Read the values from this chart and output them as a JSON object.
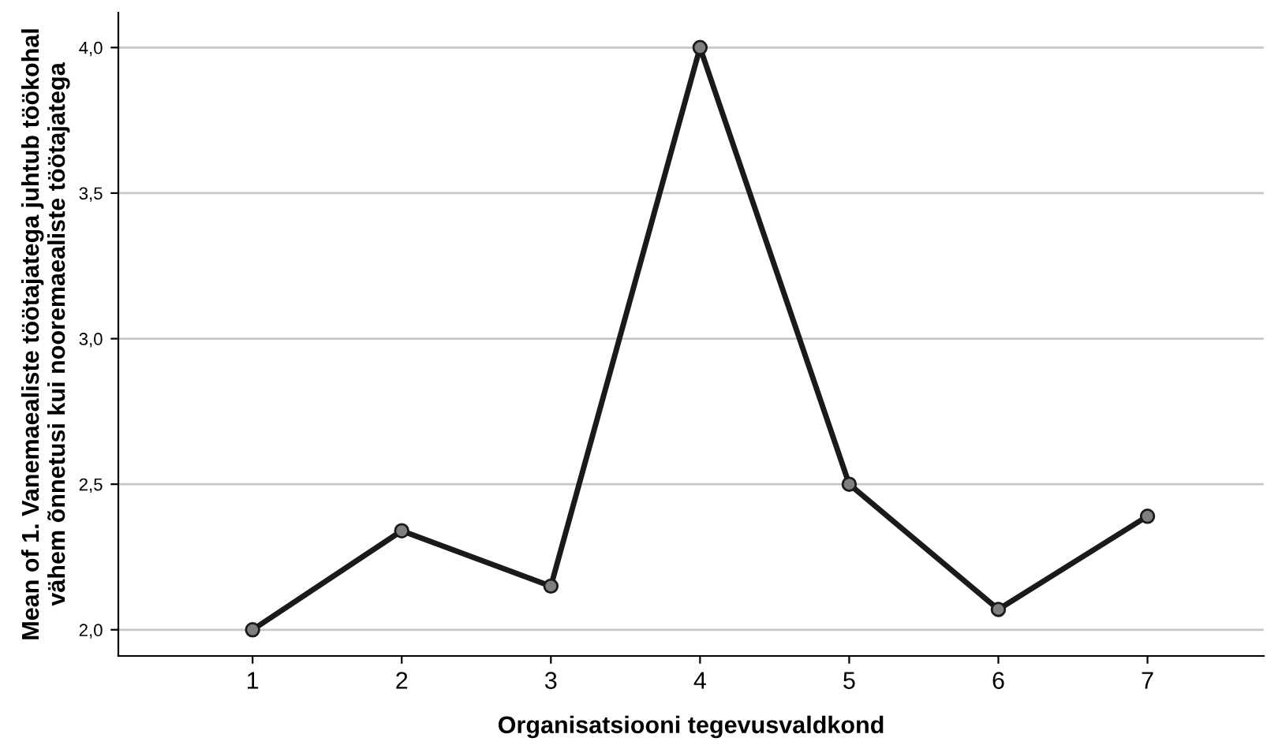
{
  "chart_data": {
    "type": "line",
    "xlabel": "Organisatsiooni tegevusvaldkond",
    "ylabel": "Mean of 1. Vanemaealiste töötajatega juhtub töökohal vähem õnnetusi kui nooremaealiste töötajatega",
    "categories": [
      "1",
      "2",
      "3",
      "4",
      "5",
      "6",
      "7"
    ],
    "series": [
      {
        "color": "#1a1a1a",
        "values": [
          2.0,
          2.34,
          2.15,
          4.0,
          2.5,
          2.07,
          2.39
        ]
      }
    ],
    "ylim": [
      1.91,
      4.12
    ],
    "yticks": [
      {
        "value": 2.0,
        "label": "2,0"
      },
      {
        "value": 2.5,
        "label": "2,5"
      },
      {
        "value": 3.0,
        "label": "3,0"
      },
      {
        "value": 3.5,
        "label": "3,5"
      },
      {
        "value": 4.0,
        "label": "4,0"
      }
    ],
    "grid": "y",
    "marker": "circle",
    "line_style": "solid",
    "legend": false
  }
}
